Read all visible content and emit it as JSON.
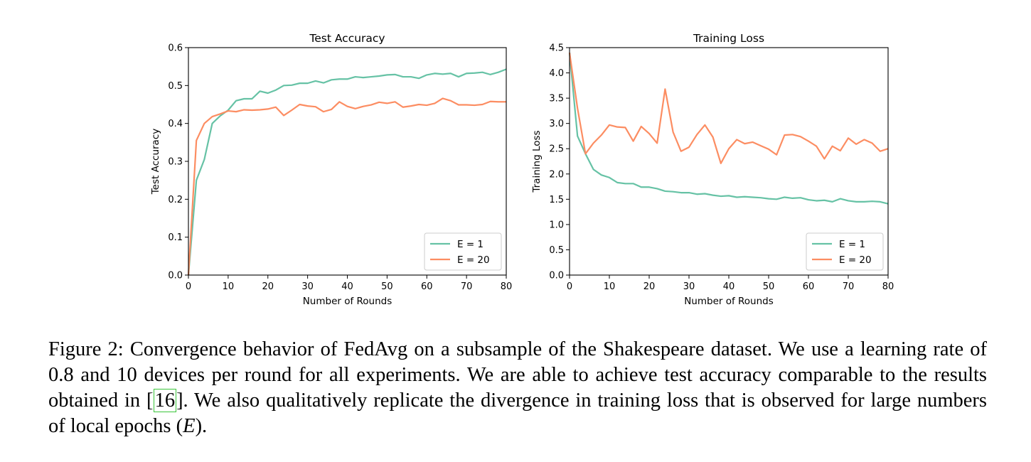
{
  "chart_data": [
    {
      "type": "line",
      "title": "Test Accuracy",
      "xlabel": "Number of Rounds",
      "ylabel": "Test Accuracy",
      "xlim": [
        0,
        80
      ],
      "ylim": [
        0,
        0.6
      ],
      "xticks": [
        0,
        10,
        20,
        30,
        40,
        50,
        60,
        70,
        80
      ],
      "yticks": [
        0.0,
        0.1,
        0.2,
        0.3,
        0.4,
        0.5,
        0.6
      ],
      "ytick_labels": [
        "0.0",
        "0.1",
        "0.2",
        "0.3",
        "0.4",
        "0.5",
        "0.6"
      ],
      "legend_position": "bottom-right",
      "grid": false,
      "x": [
        0,
        2,
        4,
        6,
        8,
        10,
        12,
        14,
        16,
        18,
        20,
        22,
        24,
        26,
        28,
        30,
        32,
        34,
        36,
        38,
        40,
        42,
        44,
        46,
        48,
        50,
        52,
        54,
        56,
        58,
        60,
        62,
        64,
        66,
        68,
        70,
        72,
        74,
        76,
        78,
        80
      ],
      "series": [
        {
          "name": "E = 1",
          "color": "#66c2a5",
          "values": [
            0.0,
            0.25,
            0.305,
            0.4,
            0.42,
            0.435,
            0.46,
            0.465,
            0.465,
            0.485,
            0.48,
            0.488,
            0.5,
            0.501,
            0.506,
            0.506,
            0.512,
            0.507,
            0.515,
            0.517,
            0.517,
            0.523,
            0.521,
            0.523,
            0.525,
            0.528,
            0.529,
            0.523,
            0.523,
            0.519,
            0.528,
            0.532,
            0.53,
            0.532,
            0.523,
            0.532,
            0.533,
            0.535,
            0.529,
            0.535,
            0.543
          ]
        },
        {
          "name": "E = 20",
          "color": "#fc8d62",
          "values": [
            0.0,
            0.355,
            0.4,
            0.418,
            0.425,
            0.433,
            0.431,
            0.436,
            0.435,
            0.436,
            0.438,
            0.443,
            0.421,
            0.435,
            0.45,
            0.446,
            0.444,
            0.431,
            0.437,
            0.457,
            0.445,
            0.439,
            0.445,
            0.449,
            0.456,
            0.453,
            0.457,
            0.443,
            0.446,
            0.45,
            0.448,
            0.453,
            0.466,
            0.46,
            0.449,
            0.449,
            0.448,
            0.45,
            0.458,
            0.457,
            0.457
          ]
        }
      ]
    },
    {
      "type": "line",
      "title": "Training Loss",
      "xlabel": "Number of Rounds",
      "ylabel": "Training Loss",
      "xlim": [
        0,
        80
      ],
      "ylim": [
        0,
        4.5
      ],
      "xticks": [
        0,
        10,
        20,
        30,
        40,
        50,
        60,
        70,
        80
      ],
      "yticks": [
        0.0,
        0.5,
        1.0,
        1.5,
        2.0,
        2.5,
        3.0,
        3.5,
        4.0,
        4.5
      ],
      "ytick_labels": [
        "0.0",
        "0.5",
        "1.0",
        "1.5",
        "2.0",
        "2.5",
        "3.0",
        "3.5",
        "4.0",
        "4.5"
      ],
      "legend_position": "bottom-right",
      "grid": false,
      "x": [
        0,
        2,
        4,
        6,
        8,
        10,
        12,
        14,
        16,
        18,
        20,
        22,
        24,
        26,
        28,
        30,
        32,
        34,
        36,
        38,
        40,
        42,
        44,
        46,
        48,
        50,
        52,
        54,
        56,
        58,
        60,
        62,
        64,
        66,
        68,
        70,
        72,
        74,
        76,
        78,
        80
      ],
      "series": [
        {
          "name": "E = 1",
          "color": "#66c2a5",
          "values": [
            4.4,
            2.75,
            2.4,
            2.09,
            1.98,
            1.93,
            1.83,
            1.81,
            1.81,
            1.74,
            1.74,
            1.71,
            1.66,
            1.65,
            1.63,
            1.63,
            1.6,
            1.61,
            1.58,
            1.56,
            1.57,
            1.54,
            1.55,
            1.54,
            1.53,
            1.51,
            1.5,
            1.54,
            1.52,
            1.53,
            1.49,
            1.47,
            1.48,
            1.45,
            1.51,
            1.47,
            1.45,
            1.45,
            1.46,
            1.45,
            1.41
          ]
        },
        {
          "name": "E = 20",
          "color": "#fc8d62",
          "values": [
            4.4,
            3.3,
            2.4,
            2.61,
            2.77,
            2.97,
            2.93,
            2.92,
            2.65,
            2.94,
            2.8,
            2.61,
            3.68,
            2.83,
            2.45,
            2.53,
            2.78,
            2.97,
            2.73,
            2.21,
            2.5,
            2.68,
            2.6,
            2.63,
            2.56,
            2.49,
            2.38,
            2.77,
            2.78,
            2.74,
            2.65,
            2.55,
            2.3,
            2.55,
            2.46,
            2.71,
            2.59,
            2.68,
            2.61,
            2.45,
            2.5
          ]
        }
      ]
    }
  ],
  "caption": {
    "prefix": "Figure 2: Convergence behavior of FedAvg on a subsample of the Shakespeare dataset. We use a learning rate of ",
    "lr": "0.8",
    "mid1": " and ",
    "devices": "10",
    "mid2": " devices per round for all experiments. We are able to achieve test accuracy comparable to the results obtained in [",
    "ref": "16",
    "mid3": "]. We also qualitatively replicate the divergence in training loss that is observed for large numbers of local epochs (",
    "epoch_symbol": "E",
    "suffix": ")."
  }
}
